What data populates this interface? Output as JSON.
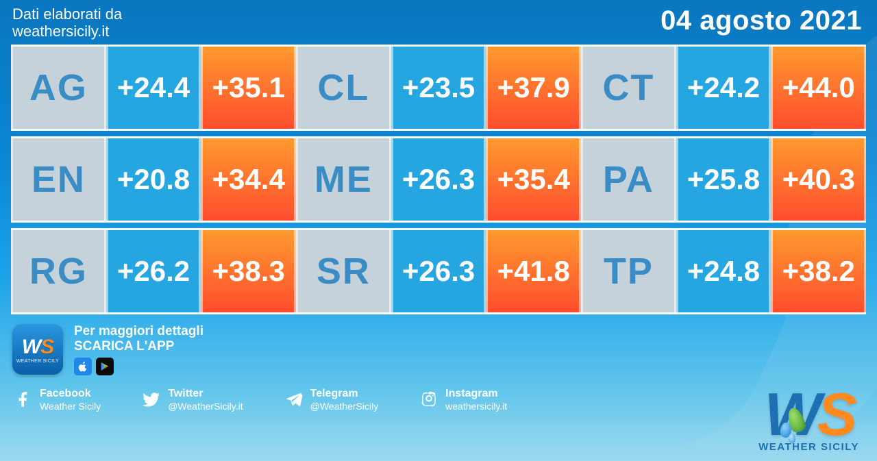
{
  "header": {
    "credit_line1": "Dati elaborati da",
    "credit_line2": "weathersicily.it",
    "date": "04 agosto 2021"
  },
  "colors": {
    "code_bg": "#c6d2da",
    "code_text": "#3a8cc4",
    "min_bg": "#25a6e0",
    "min_text": "#ffffff",
    "max_gradient_from": "#ff9a2e",
    "max_gradient_to": "#ff4d2e",
    "max_text": "#ffffff",
    "row_border": "#ffffff"
  },
  "temperature_table": {
    "type": "table",
    "columns": [
      "province_code",
      "min_temp_c",
      "max_temp_c"
    ],
    "layout_rows": 3,
    "layout_cols": 3,
    "font_size_code": 54,
    "font_size_value": 42,
    "rows": [
      {
        "code": "AG",
        "min": "+24.4",
        "max": "+35.1"
      },
      {
        "code": "CL",
        "min": "+23.5",
        "max": "+37.9"
      },
      {
        "code": "CT",
        "min": "+24.2",
        "max": "+44.0"
      },
      {
        "code": "EN",
        "min": "+20.8",
        "max": "+34.4"
      },
      {
        "code": "ME",
        "min": "+26.3",
        "max": "+35.4"
      },
      {
        "code": "PA",
        "min": "+25.8",
        "max": "+40.3"
      },
      {
        "code": "RG",
        "min": "+26.2",
        "max": "+38.3"
      },
      {
        "code": "SR",
        "min": "+26.3",
        "max": "+41.8"
      },
      {
        "code": "TP",
        "min": "+24.8",
        "max": "+38.2"
      }
    ]
  },
  "promo": {
    "line1": "Per maggiori dettagli",
    "line2": "SCARICA L'APP",
    "app_icon_label": "WS",
    "app_icon_sub": "WEATHER SICILY"
  },
  "socials": [
    {
      "icon": "facebook",
      "name": "Facebook",
      "handle": "Weather Sicily"
    },
    {
      "icon": "twitter",
      "name": "Twitter",
      "handle": "@WeatherSicily.it"
    },
    {
      "icon": "telegram",
      "name": "Telegram",
      "handle": "@WeatherSicily"
    },
    {
      "icon": "instagram",
      "name": "Instagram",
      "handle": "weathersicily.it"
    }
  ],
  "brand": {
    "name": "WEATHER SICILY"
  }
}
